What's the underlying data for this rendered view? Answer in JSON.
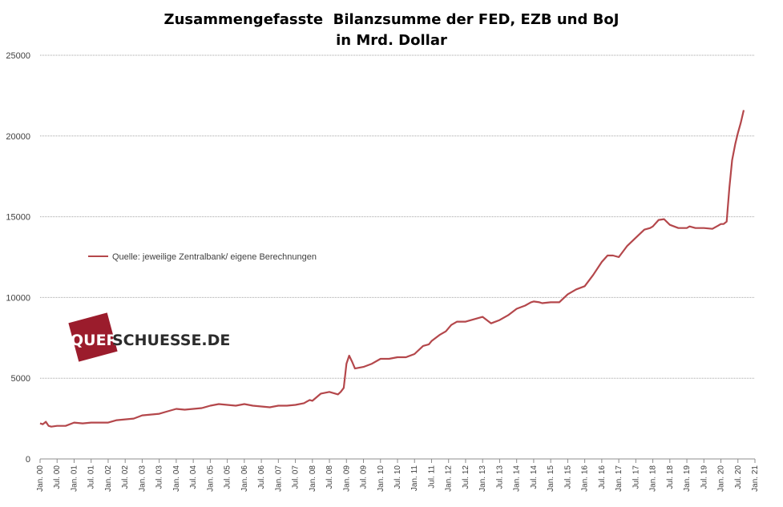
{
  "chart_data": {
    "type": "line",
    "title_line1": "Zusammengefasste  Bilanzsumme der FED, EZB und BoJ",
    "title_line2": "in Mrd. Dollar",
    "xlabel": "",
    "ylabel": "",
    "ylim": [
      0,
      25000
    ],
    "yticks": [
      0,
      5000,
      10000,
      15000,
      20000,
      25000
    ],
    "grid": true,
    "legend_position": "left",
    "xlim": [
      2000.0,
      2021.0
    ],
    "x_tick_labels": [
      "Jan. 00",
      "Jul. 00",
      "Jan. 01",
      "Jul. 01",
      "Jan. 02",
      "Jul. 02",
      "Jan. 03",
      "Jul. 03",
      "Jan. 04",
      "Jul. 04",
      "Jan. 05",
      "Jul. 05",
      "Jan. 06",
      "Jul. 06",
      "Jan. 07",
      "Jul. 07",
      "Jan. 08",
      "Jul. 08",
      "Jan. 09",
      "Jul. 09",
      "Jan. 10",
      "Jul. 10",
      "Jan. 11",
      "Jul. 11",
      "Jan. 12",
      "Jul. 12",
      "Jan. 13",
      "Jul. 13",
      "Jan. 14",
      "Jul. 14",
      "Jan. 15",
      "Jul. 15",
      "Jan. 16",
      "Jul. 16",
      "Jan. 17",
      "Jul. 17",
      "Jan. 18",
      "Jul. 18",
      "Jan. 19",
      "Jul. 19",
      "Jan. 20",
      "Jul. 20",
      "Jan. 21"
    ],
    "color": "#b4474b",
    "series": [
      {
        "name": "Quelle: jeweilige Zentralbank/ eigene Berechnungen",
        "x": [
          2000.0,
          2000.08,
          2000.17,
          2000.25,
          2000.33,
          2000.5,
          2000.75,
          2001.0,
          2001.25,
          2001.5,
          2001.75,
          2002.0,
          2002.25,
          2002.5,
          2002.75,
          2003.0,
          2003.25,
          2003.5,
          2003.75,
          2004.0,
          2004.25,
          2004.5,
          2004.75,
          2005.0,
          2005.25,
          2005.5,
          2005.75,
          2006.0,
          2006.25,
          2006.5,
          2006.75,
          2007.0,
          2007.25,
          2007.5,
          2007.75,
          2007.92,
          2008.0,
          2008.25,
          2008.5,
          2008.67,
          2008.75,
          2008.83,
          2008.92,
          2009.0,
          2009.08,
          2009.17,
          2009.25,
          2009.5,
          2009.75,
          2010.0,
          2010.25,
          2010.5,
          2010.75,
          2011.0,
          2011.25,
          2011.42,
          2011.5,
          2011.75,
          2011.92,
          2012.0,
          2012.08,
          2012.25,
          2012.5,
          2012.75,
          2013.0,
          2013.25,
          2013.5,
          2013.75,
          2014.0,
          2014.25,
          2014.42,
          2014.5,
          2014.67,
          2014.75,
          2015.0,
          2015.25,
          2015.5,
          2015.75,
          2016.0,
          2016.25,
          2016.5,
          2016.67,
          2016.83,
          2017.0,
          2017.25,
          2017.5,
          2017.75,
          2017.92,
          2018.0,
          2018.17,
          2018.33,
          2018.5,
          2018.75,
          2019.0,
          2019.08,
          2019.25,
          2019.5,
          2019.75,
          2019.92,
          2020.0,
          2020.08,
          2020.17,
          2020.25,
          2020.33,
          2020.42,
          2020.5,
          2020.58,
          2020.67
        ],
        "y": [
          2200,
          2150,
          2300,
          2050,
          2000,
          2050,
          2050,
          2250,
          2200,
          2250,
          2250,
          2250,
          2400,
          2450,
          2500,
          2700,
          2750,
          2800,
          2950,
          3100,
          3050,
          3100,
          3150,
          3300,
          3400,
          3350,
          3300,
          3400,
          3300,
          3250,
          3200,
          3300,
          3300,
          3350,
          3450,
          3650,
          3600,
          4050,
          4150,
          4050,
          4000,
          4150,
          4400,
          5900,
          6400,
          6000,
          5600,
          5700,
          5900,
          6200,
          6200,
          6300,
          6300,
          6500,
          7000,
          7100,
          7300,
          7700,
          7900,
          8100,
          8300,
          8500,
          8500,
          8650,
          8800,
          8400,
          8600,
          8900,
          9300,
          9500,
          9700,
          9750,
          9700,
          9650,
          9700,
          9700,
          10200,
          10500,
          10700,
          11400,
          12200,
          12600,
          12600,
          12500,
          13200,
          13700,
          14200,
          14300,
          14400,
          14800,
          14850,
          14500,
          14300,
          14300,
          14400,
          14300,
          14300,
          14250,
          14450,
          14550,
          14550,
          14700,
          16800,
          18500,
          19500,
          20200,
          20800,
          21600
        ]
      }
    ]
  },
  "legend": {
    "label": "Quelle: jeweilige Zentralbank/ eigene Berechnungen"
  },
  "logo": {
    "part1": "QUER",
    "part2": "SCHUESSE.DE",
    "colors": {
      "square": "#9b1c2c",
      "text_dark": "#2c2c2c",
      "text_light": "#ffffff"
    }
  }
}
